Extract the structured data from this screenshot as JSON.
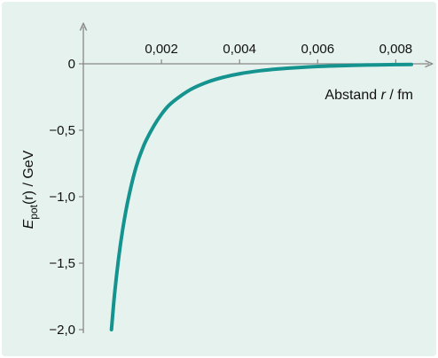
{
  "chart_data": {
    "type": "line",
    "xlabel_prefix": "Abstand ",
    "xlabel_var": "r",
    "xlabel_unit": " / fm",
    "ylabel_var": "E",
    "ylabel_sub": "pot",
    "ylabel_rest": "(r) / GeV",
    "xlim": [
      0,
      0.0084
    ],
    "ylim": [
      -2.0,
      0
    ],
    "x_ticks": [
      0.002,
      0.004,
      0.006,
      0.008
    ],
    "x_tick_labels": [
      "0,002",
      "0,004",
      "0,006",
      "0,008"
    ],
    "y_ticks": [
      0,
      -0.5,
      -1.0,
      -1.5,
      -2.0
    ],
    "y_tick_labels": [
      "0",
      "−0,5",
      "−1,0",
      "−1,5",
      "−2,0"
    ],
    "grid": false,
    "series": [
      {
        "color": "#15938f",
        "x": [
          0.00072,
          0.0008,
          0.0009,
          0.001,
          0.0011,
          0.0012,
          0.0013,
          0.0014,
          0.0015,
          0.0016,
          0.0018,
          0.002,
          0.0022,
          0.0025,
          0.0028,
          0.0032,
          0.0036,
          0.004,
          0.0045,
          0.005,
          0.0055,
          0.006,
          0.0065,
          0.007,
          0.0075,
          0.008,
          0.0084
        ],
        "y": [
          -2.0,
          -1.73,
          -1.47,
          -1.26,
          -1.09,
          -0.95,
          -0.83,
          -0.73,
          -0.65,
          -0.58,
          -0.47,
          -0.38,
          -0.31,
          -0.24,
          -0.185,
          -0.135,
          -0.1,
          -0.075,
          -0.053,
          -0.038,
          -0.028,
          -0.02,
          -0.015,
          -0.011,
          -0.008,
          -0.006,
          -0.005
        ]
      }
    ]
  }
}
